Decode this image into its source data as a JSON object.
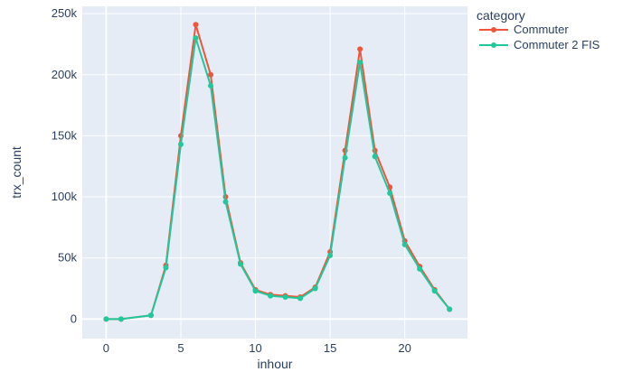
{
  "chart_data": {
    "type": "line",
    "xlabel": "inhour",
    "ylabel": "trx_count",
    "xlim": [
      -1.6,
      24.2
    ],
    "ylim": [
      -16000,
      256000
    ],
    "x_ticks": [
      0,
      5,
      10,
      15,
      20
    ],
    "x_tick_labels": [
      "0",
      "5",
      "10",
      "15",
      "20"
    ],
    "y_ticks": [
      0,
      50000,
      100000,
      150000,
      200000,
      250000
    ],
    "y_tick_labels": [
      "0",
      "50k",
      "100k",
      "150k",
      "200k",
      "250k"
    ],
    "grid": true,
    "plot_background": "#e5ecf6",
    "legend": {
      "title": "category",
      "placement": "top-right"
    },
    "series": [
      {
        "name": "Commuter",
        "color": "#ef553b",
        "x": [
          0,
          1,
          3,
          4,
          5,
          6,
          7,
          8,
          9,
          10,
          11,
          12,
          13,
          14,
          15,
          16,
          17,
          18,
          19,
          20,
          21,
          22,
          23
        ],
        "values": [
          0,
          0,
          3000,
          44000,
          150000,
          241000,
          200000,
          100000,
          46000,
          24000,
          20000,
          19000,
          18000,
          26000,
          55000,
          138000,
          221000,
          138000,
          108000,
          64000,
          43000,
          24000,
          8000
        ]
      },
      {
        "name": "Commuter 2 FIS",
        "color": "#1fc99b",
        "x": [
          0,
          1,
          3,
          4,
          5,
          6,
          7,
          8,
          9,
          10,
          11,
          12,
          13,
          14,
          15,
          16,
          17,
          18,
          19,
          20,
          21,
          22,
          23
        ],
        "values": [
          0,
          0,
          3000,
          42000,
          143000,
          230000,
          191000,
          96000,
          45000,
          23000,
          19000,
          18000,
          17000,
          25000,
          52000,
          132000,
          210000,
          133000,
          103000,
          61000,
          41000,
          23000,
          8000
        ]
      }
    ]
  }
}
